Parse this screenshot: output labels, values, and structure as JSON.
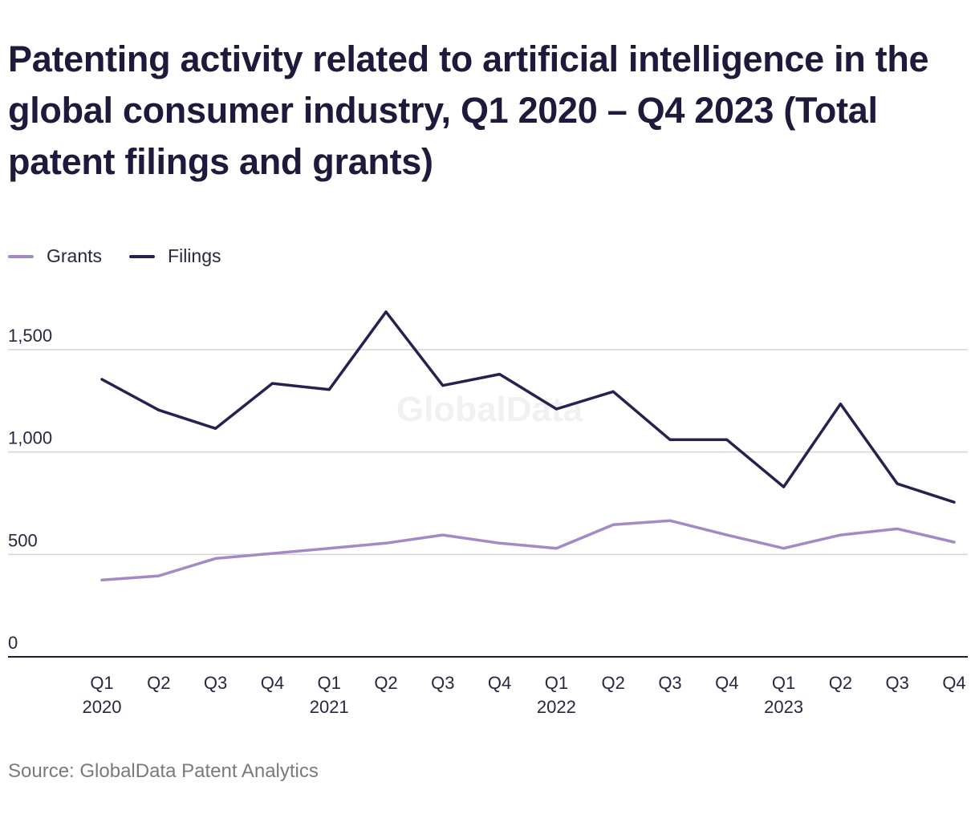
{
  "title": "Patenting activity related to artificial intelligence in the global consumer industry, Q1 2020 – Q4 2023 (Total patent filings and grants)",
  "source": "Source: GlobalData Patent Analytics",
  "watermark": "GlobalData",
  "colors": {
    "grants": "#a389c6",
    "filings": "#2c1f4f",
    "grid": "#d4d4d4",
    "axis": "#1e1a3c",
    "text": "#2a2540"
  },
  "chart_data": {
    "type": "line",
    "categories": [
      "Q1 2020",
      "Q2 2020",
      "Q3 2020",
      "Q4 2020",
      "Q1 2021",
      "Q2 2021",
      "Q3 2021",
      "Q4 2021",
      "Q1 2022",
      "Q2 2022",
      "Q3 2022",
      "Q4 2022",
      "Q1 2023",
      "Q2 2023",
      "Q3 2023",
      "Q4 2023"
    ],
    "tick_labels": [
      [
        "Q1",
        "2020"
      ],
      [
        "Q2"
      ],
      [
        "Q3"
      ],
      [
        "Q4"
      ],
      [
        "Q1",
        "2021"
      ],
      [
        "Q2"
      ],
      [
        "Q3"
      ],
      [
        "Q4"
      ],
      [
        "Q1",
        "2022"
      ],
      [
        "Q2"
      ],
      [
        "Q3"
      ],
      [
        "Q4"
      ],
      [
        "Q1",
        "2023"
      ],
      [
        "Q2"
      ],
      [
        "Q3"
      ],
      [
        "Q4"
      ]
    ],
    "series": [
      {
        "name": "Grants",
        "color": "#a389c6",
        "values": [
          375,
          395,
          480,
          505,
          530,
          555,
          595,
          555,
          530,
          645,
          665,
          595,
          530,
          595,
          625,
          560
        ]
      },
      {
        "name": "Filings",
        "color": "#2c1f4f",
        "values": [
          1355,
          1205,
          1115,
          1335,
          1305,
          1685,
          1325,
          1380,
          1210,
          1295,
          1060,
          1060,
          830,
          1235,
          845,
          755
        ]
      }
    ],
    "yticks": [
      0,
      500,
      1000,
      1500
    ],
    "ytick_labels": [
      "0",
      "500",
      "1,000",
      "1,500"
    ],
    "ylim": [
      0,
      1720
    ],
    "xlabel": "",
    "ylabel": "",
    "grid": true,
    "legend_position": "top-left"
  }
}
